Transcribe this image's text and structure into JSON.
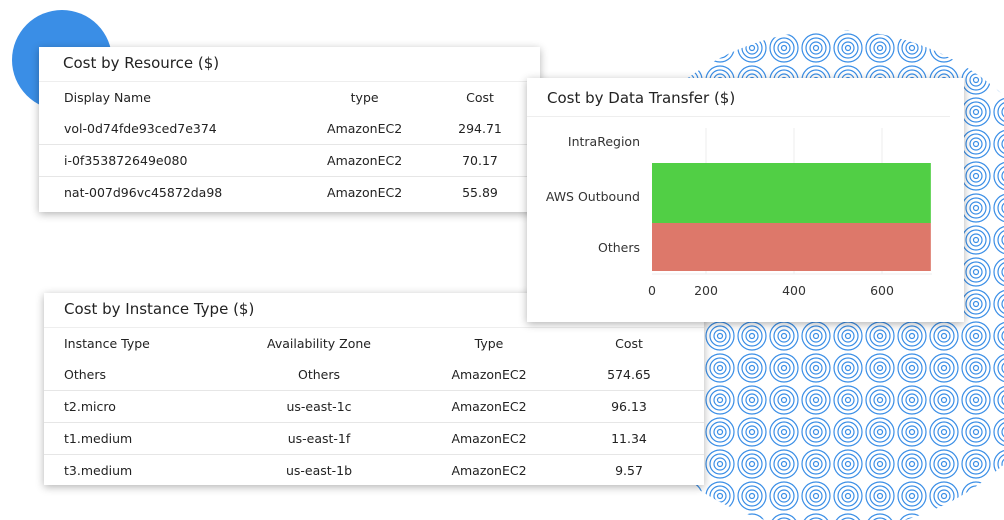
{
  "resource": {
    "title": "Cost by Resource ($)",
    "headers": [
      "Display Name",
      "type",
      "Cost"
    ],
    "rows": [
      [
        "vol-0d74fde93ced7e374",
        "AmazonEC2",
        "294.71"
      ],
      [
        "i-0f353872649e080",
        "AmazonEC2",
        "70.17"
      ],
      [
        "nat-007d96vc45872da98",
        "AmazonEC2",
        "55.89"
      ]
    ]
  },
  "instance": {
    "title": "Cost by Instance Type ($)",
    "headers": [
      "Instance Type",
      "Availability Zone",
      "Type",
      "Cost"
    ],
    "rows": [
      [
        "Others",
        "Others",
        "AmazonEC2",
        "574.65"
      ],
      [
        "t2.micro",
        "us-east-1c",
        "AmazonEC2",
        "96.13"
      ],
      [
        "t1.medium",
        "us-east-1f",
        "AmazonEC2",
        "11.34"
      ],
      [
        "t3.medium",
        "us-east-1b",
        "AmazonEC2",
        "9.57"
      ]
    ]
  },
  "chart_data": {
    "type": "bar",
    "orientation": "horizontal",
    "title": "Cost by Data Transfer ($)",
    "categories": [
      "IntraRegion",
      "AWS Outbound",
      "Others"
    ],
    "values": [
      0,
      711,
      711
    ],
    "colors": [
      "#51cf45",
      "#51cf45",
      "#dd786a"
    ],
    "xticks": [
      "0",
      "200",
      "400",
      "600"
    ],
    "grid": true
  },
  "colors": {
    "accent": "#3a8ee6",
    "pattern": "#3a8ee6"
  }
}
